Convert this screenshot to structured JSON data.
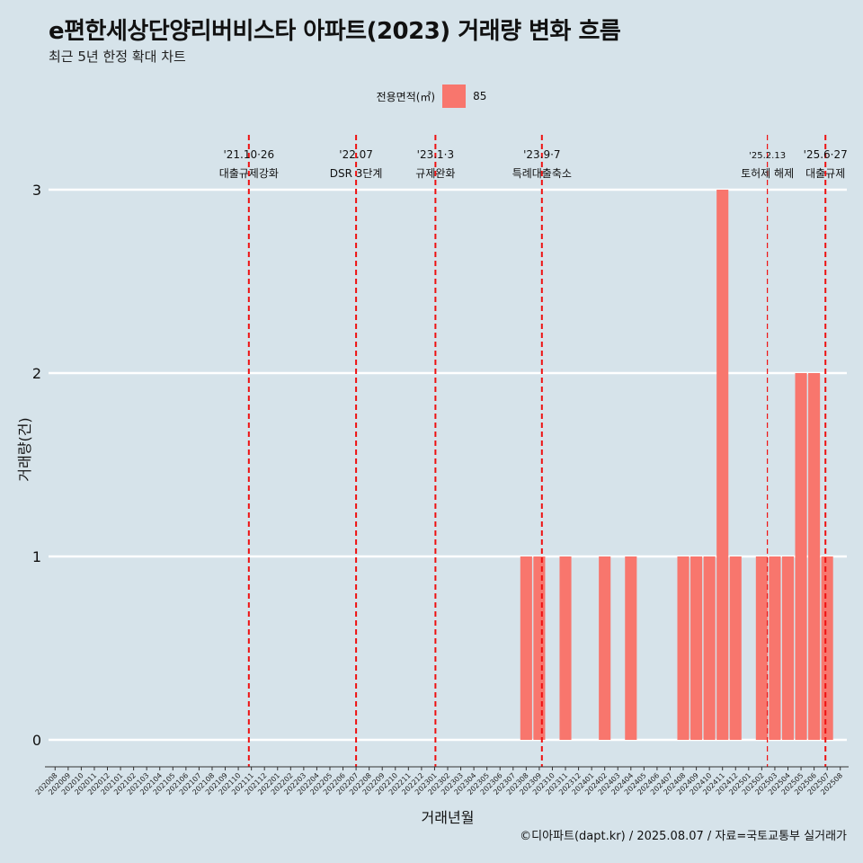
{
  "header": {
    "title": "e편한세상단양리버비스타 아파트(2023) 거래량 변화 흐름",
    "subtitle": "최근 5년 한정 확대 차트"
  },
  "legend": {
    "label": "전용면적(㎡)",
    "item": "85",
    "color": "#f8766d"
  },
  "caption": "©디아파트(dapt.kr) / 2025.08.07 / 자료=국토교통부 실거래가",
  "chart_data": {
    "type": "bar",
    "title": "e편한세상단양리버비스타 아파트(2023) 거래량 변화 흐름",
    "xlabel": "거래년월",
    "ylabel": "거래량(건)",
    "ylim": [
      0,
      3.2
    ],
    "yticks": [
      0,
      1,
      2,
      3
    ],
    "categories": [
      "202008",
      "202009",
      "202010",
      "202011",
      "202012",
      "202101",
      "202102",
      "202103",
      "202104",
      "202105",
      "202106",
      "202107",
      "202108",
      "202109",
      "202110",
      "202111",
      "202112",
      "202201",
      "202202",
      "202203",
      "202204",
      "202205",
      "202206",
      "202207",
      "202208",
      "202209",
      "202210",
      "202211",
      "202212",
      "202301",
      "202302",
      "202303",
      "202304",
      "202305",
      "202306",
      "202307",
      "202308",
      "202309",
      "202310",
      "202311",
      "202312",
      "202401",
      "202402",
      "202403",
      "202404",
      "202405",
      "202406",
      "202407",
      "202408",
      "202409",
      "202410",
      "202411",
      "202412",
      "202501",
      "202502",
      "202503",
      "202504",
      "202505",
      "202506",
      "202507",
      "202508"
    ],
    "series": [
      {
        "name": "85",
        "color": "#f8766d",
        "values": [
          0,
          0,
          0,
          0,
          0,
          0,
          0,
          0,
          0,
          0,
          0,
          0,
          0,
          0,
          0,
          0,
          0,
          0,
          0,
          0,
          0,
          0,
          0,
          0,
          0,
          0,
          0,
          0,
          0,
          0,
          0,
          0,
          0,
          0,
          0,
          0,
          1,
          1,
          0,
          1,
          0,
          0,
          1,
          0,
          1,
          0,
          0,
          0,
          1,
          1,
          1,
          3,
          1,
          0,
          1,
          1,
          1,
          2,
          2,
          1,
          0
        ]
      }
    ],
    "annotations": [
      {
        "date": "2021-10-26",
        "line1": "'21.10·26",
        "line2": "대출규제강화",
        "thick": true
      },
      {
        "date": "2022-07-01",
        "line1": "'22.07",
        "line2": "DSR 3단계",
        "thick": true
      },
      {
        "date": "2023-01-03",
        "line1": "'23.1·3",
        "line2": "규제완화",
        "thick": true
      },
      {
        "date": "2023-09-07",
        "line1": "'23.9·7",
        "line2": "특례대출축소",
        "thick": true
      },
      {
        "date": "2025-02-13",
        "line1": "'25.2.13",
        "line2": "토허제 해제",
        "thick": false
      },
      {
        "date": "2025-06-27",
        "line1": "'25.6·27",
        "line2": "대출규제",
        "thick": true
      }
    ]
  }
}
